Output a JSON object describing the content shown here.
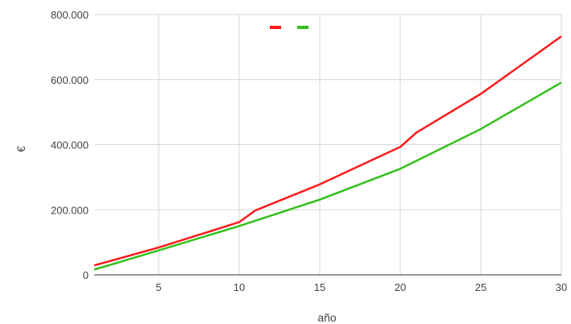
{
  "chart_data": {
    "type": "line",
    "title": "",
    "xlabel": "año",
    "ylabel": "€",
    "xlim": [
      1,
      30
    ],
    "ylim": [
      0,
      800000
    ],
    "grid": true,
    "legend": "top-center",
    "x_ticks": [
      {
        "value": 5,
        "label": "5"
      },
      {
        "value": 10,
        "label": "10"
      },
      {
        "value": 15,
        "label": "15"
      },
      {
        "value": 20,
        "label": "20"
      },
      {
        "value": 25,
        "label": "25"
      },
      {
        "value": 30,
        "label": "30"
      }
    ],
    "y_ticks": [
      {
        "value": 0,
        "label": "0"
      },
      {
        "value": 200000,
        "label": "200.000"
      },
      {
        "value": 400000,
        "label": "400.000"
      },
      {
        "value": 600000,
        "label": "600.000"
      },
      {
        "value": 800000,
        "label": "800.000"
      }
    ],
    "series": [
      {
        "color": "#ff1a1a",
        "points": [
          [
            1,
            29000
          ],
          [
            5,
            84000
          ],
          [
            10,
            162000
          ],
          [
            11,
            198000
          ],
          [
            15,
            278000
          ],
          [
            20,
            393000
          ],
          [
            21,
            437000
          ],
          [
            25,
            556000
          ],
          [
            30,
            733000
          ]
        ]
      },
      {
        "color": "#33c01a",
        "points": [
          [
            1,
            16000
          ],
          [
            5,
            75000
          ],
          [
            10,
            150000
          ],
          [
            15,
            231000
          ],
          [
            20,
            326000
          ],
          [
            25,
            448000
          ],
          [
            30,
            591000
          ]
        ]
      }
    ]
  }
}
